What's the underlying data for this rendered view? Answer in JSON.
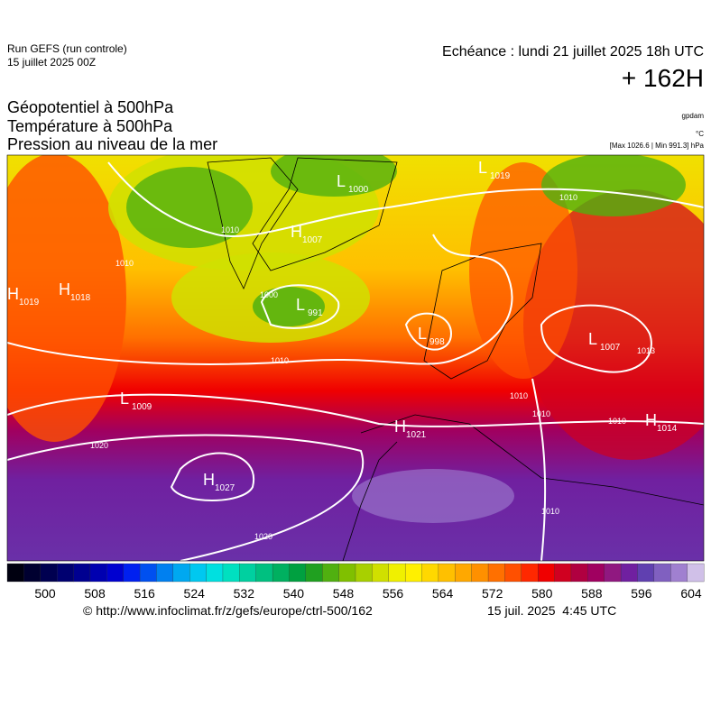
{
  "header": {
    "run": "Run GEFS (run controle)",
    "run_date": "15 juillet 2025 00Z",
    "valid": "Echéance : lundi 21 juillet 2025 18h UTC",
    "lead": "+ 162H",
    "fields": [
      "Géopotentiel à 500hPa",
      "Température à 500hPa",
      "Pression au niveau de la mer"
    ],
    "units": [
      "gpdam",
      "°C",
      "[Max 1026.6 | Min 991.3] hPa"
    ]
  },
  "map": {
    "centers": [
      {
        "letter": "L",
        "value": "1000"
      },
      {
        "letter": "H",
        "value": "1007"
      },
      {
        "letter": "L",
        "value": "991"
      },
      {
        "letter": "L",
        "value": "998"
      },
      {
        "letter": "L",
        "value": "1007"
      },
      {
        "letter": "L",
        "value": "1009"
      },
      {
        "letter": "H",
        "value": "1021"
      },
      {
        "letter": "H",
        "value": "1014"
      },
      {
        "letter": "H",
        "value": "1027"
      },
      {
        "letter": "H",
        "value": "1019"
      },
      {
        "letter": "H",
        "value": "1018"
      },
      {
        "letter": "L",
        "value": "1019"
      }
    ],
    "isobar_labels": [
      "1020",
      "1020",
      "1010",
      "1010",
      "1010",
      "1010",
      "1000",
      "1013",
      "1010",
      "1010",
      "1010",
      "1010"
    ]
  },
  "colorbar": {
    "colors": [
      "#000010",
      "#000030",
      "#000050",
      "#000070",
      "#000090",
      "#0000b0",
      "#0000d0",
      "#0020f0",
      "#0050f0",
      "#0080f0",
      "#00a8f0",
      "#00c8f0",
      "#00e0e0",
      "#00e0c0",
      "#00d0a0",
      "#00c080",
      "#00b060",
      "#00a040",
      "#20a020",
      "#50b010",
      "#80c000",
      "#a8d000",
      "#d0e000",
      "#f0f000",
      "#fff000",
      "#ffd800",
      "#ffc000",
      "#ffa800",
      "#ff9000",
      "#ff7000",
      "#ff5000",
      "#ff2800",
      "#f00000",
      "#d00020",
      "#b00040",
      "#a00060",
      "#901880",
      "#7020a0",
      "#6040b0",
      "#8060c0",
      "#a080d0",
      "#d0c0e8"
    ],
    "labels": [
      "500",
      "508",
      "516",
      "524",
      "532",
      "540",
      "548",
      "556",
      "564",
      "572",
      "580",
      "588",
      "596",
      "604"
    ]
  },
  "footer": {
    "url": "© http://www.infoclimat.fr/z/gefs/europe/ctrl-500/162",
    "issued": "15 juil. 2025  4:45 UTC"
  }
}
